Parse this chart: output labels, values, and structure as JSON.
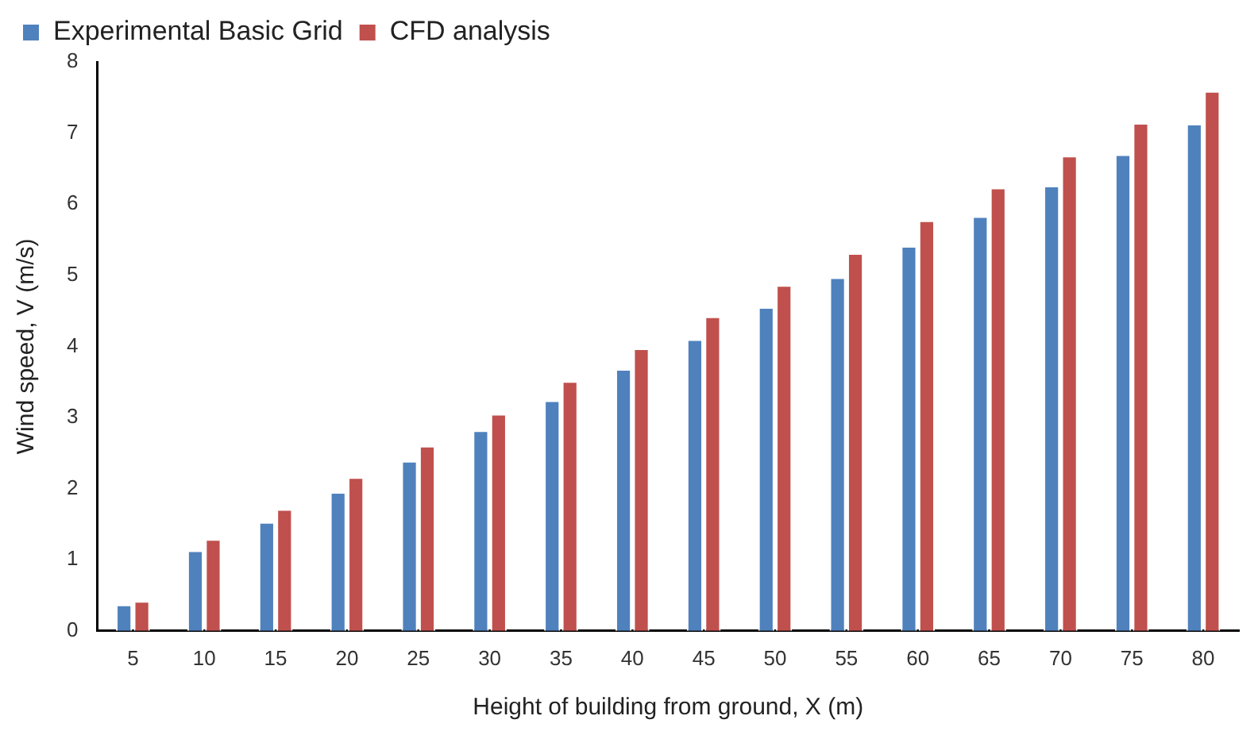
{
  "chart_data": {
    "type": "bar",
    "xlabel": "Height of building from ground, X (m)",
    "ylabel": "Wind speed, V (m/s)",
    "categories": [
      "5",
      "10",
      "15",
      "20",
      "25",
      "30",
      "35",
      "40",
      "45",
      "50",
      "55",
      "60",
      "65",
      "70",
      "75",
      "80"
    ],
    "series": [
      {
        "name": "Experimental Basic Grid",
        "color": "#4f81bd",
        "values": [
          0.37,
          1.13,
          1.53,
          1.95,
          2.39,
          2.82,
          3.24,
          3.68,
          4.1,
          4.55,
          4.97,
          5.41,
          5.83,
          6.26,
          6.7,
          7.13
        ]
      },
      {
        "name": "CFD analysis",
        "color": "#c0504d",
        "values": [
          0.42,
          1.29,
          1.71,
          2.16,
          2.6,
          3.05,
          3.51,
          3.97,
          4.42,
          4.86,
          5.31,
          5.77,
          6.23,
          6.68,
          7.14,
          7.59
        ]
      }
    ],
    "ylim": [
      0,
      8
    ],
    "yticks": [
      0,
      1,
      2,
      3,
      4,
      5,
      6,
      7,
      8
    ],
    "grid": false,
    "legend": "top left"
  }
}
